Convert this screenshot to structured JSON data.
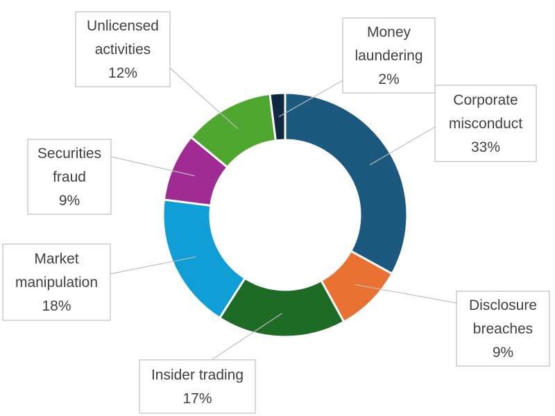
{
  "chart_data": {
    "type": "pie",
    "variant": "donut",
    "title": "",
    "unit": "%",
    "categories": [
      "Corporate misconduct",
      "Disclosure breaches",
      "Insider trading",
      "Market manipulation",
      "Securities fraud",
      "Unlicensed activities",
      "Money laundering"
    ],
    "values": [
      33,
      9,
      17,
      18,
      9,
      12,
      2
    ],
    "labels": [
      {
        "lines": [
          "Corporate",
          "misconduct",
          "33%"
        ]
      },
      {
        "lines": [
          "Disclosure",
          "breaches",
          "9%"
        ]
      },
      {
        "lines": [
          "Insider trading",
          "17%"
        ]
      },
      {
        "lines": [
          "Market",
          "manipulation",
          "18%"
        ]
      },
      {
        "lines": [
          "Securities",
          "fraud",
          "9%"
        ]
      },
      {
        "lines": [
          "Unlicensed",
          "activities",
          "12%"
        ]
      },
      {
        "lines": [
          "Money",
          "laundering",
          "2%"
        ]
      }
    ],
    "colors": [
      "#1b5a7e",
      "#e97132",
      "#1d6b25",
      "#0f9ed5",
      "#a02b93",
      "#4ea72e",
      "#0e2841"
    ],
    "start_angle_deg": 0,
    "direction": "clockwise",
    "legend": "none",
    "data_labels": "callouts"
  }
}
